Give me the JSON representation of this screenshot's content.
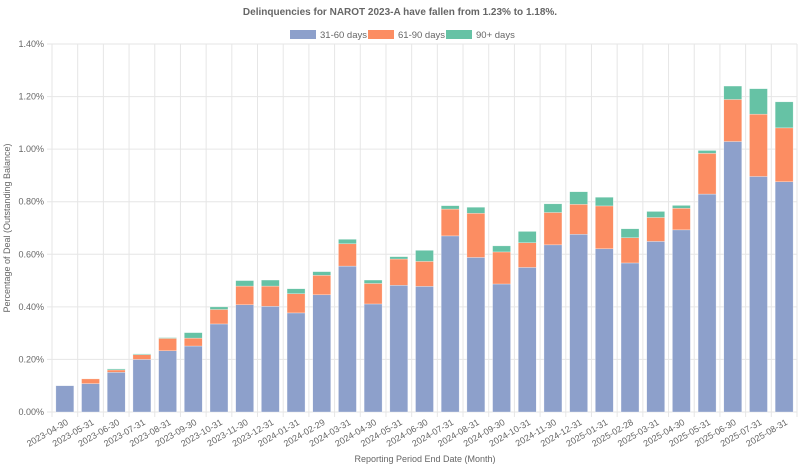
{
  "chart_data": {
    "type": "bar",
    "stacked": true,
    "title": "Delinquencies for NAROT 2023-A have fallen from 1.23% to 1.18%.",
    "xlabel": "Reporting Period End Date (Month)",
    "ylabel": "Percentage of Deal (Outstanding Balance)",
    "ylim": [
      0,
      1.4
    ],
    "yticks": [
      "0.00%",
      "0.20%",
      "0.40%",
      "0.60%",
      "0.80%",
      "1.00%",
      "1.20%",
      "1.40%"
    ],
    "ytick_values": [
      0,
      0.2,
      0.4,
      0.6,
      0.8,
      1.0,
      1.2,
      1.4
    ],
    "grid": true,
    "legend_position": "top-center",
    "categories": [
      "2023-04-30",
      "2023-05-31",
      "2023-06-30",
      "2023-07-31",
      "2023-08-31",
      "2023-09-30",
      "2023-10-31",
      "2023-11-30",
      "2023-12-31",
      "2024-01-31",
      "2024-02-29",
      "2024-03-31",
      "2024-04-30",
      "2024-05-31",
      "2024-06-30",
      "2024-07-31",
      "2024-08-31",
      "2024-09-30",
      "2024-10-31",
      "2024-11-30",
      "2024-12-31",
      "2025-01-31",
      "2025-02-28",
      "2025-03-31",
      "2025-04-30",
      "2025-05-31",
      "2025-06-30",
      "2025-07-31",
      "2025-08-31"
    ],
    "series": [
      {
        "name": "31-60 days",
        "color": "#8da0cb",
        "values": [
          0.1,
          0.108,
          0.151,
          0.2,
          0.233,
          0.251,
          0.335,
          0.408,
          0.402,
          0.377,
          0.446,
          0.555,
          0.411,
          0.482,
          0.478,
          0.67,
          0.588,
          0.487,
          0.55,
          0.636,
          0.676,
          0.621,
          0.567,
          0.649,
          0.693,
          0.829,
          1.029,
          0.896,
          0.876
        ]
      },
      {
        "name": "61-90 days",
        "color": "#fc8d62",
        "values": [
          0.0,
          0.018,
          0.009,
          0.018,
          0.047,
          0.03,
          0.055,
          0.071,
          0.077,
          0.073,
          0.074,
          0.085,
          0.078,
          0.1,
          0.095,
          0.102,
          0.168,
          0.122,
          0.094,
          0.123,
          0.114,
          0.163,
          0.096,
          0.091,
          0.082,
          0.155,
          0.16,
          0.237,
          0.205
        ]
      },
      {
        "name": "90+ days",
        "color": "#66c2a5",
        "values": [
          0.0,
          0.0,
          0.004,
          0.003,
          0.003,
          0.021,
          0.01,
          0.021,
          0.023,
          0.019,
          0.014,
          0.017,
          0.013,
          0.009,
          0.042,
          0.013,
          0.023,
          0.023,
          0.043,
          0.033,
          0.048,
          0.033,
          0.034,
          0.023,
          0.011,
          0.011,
          0.051,
          0.097,
          0.099
        ]
      }
    ]
  }
}
